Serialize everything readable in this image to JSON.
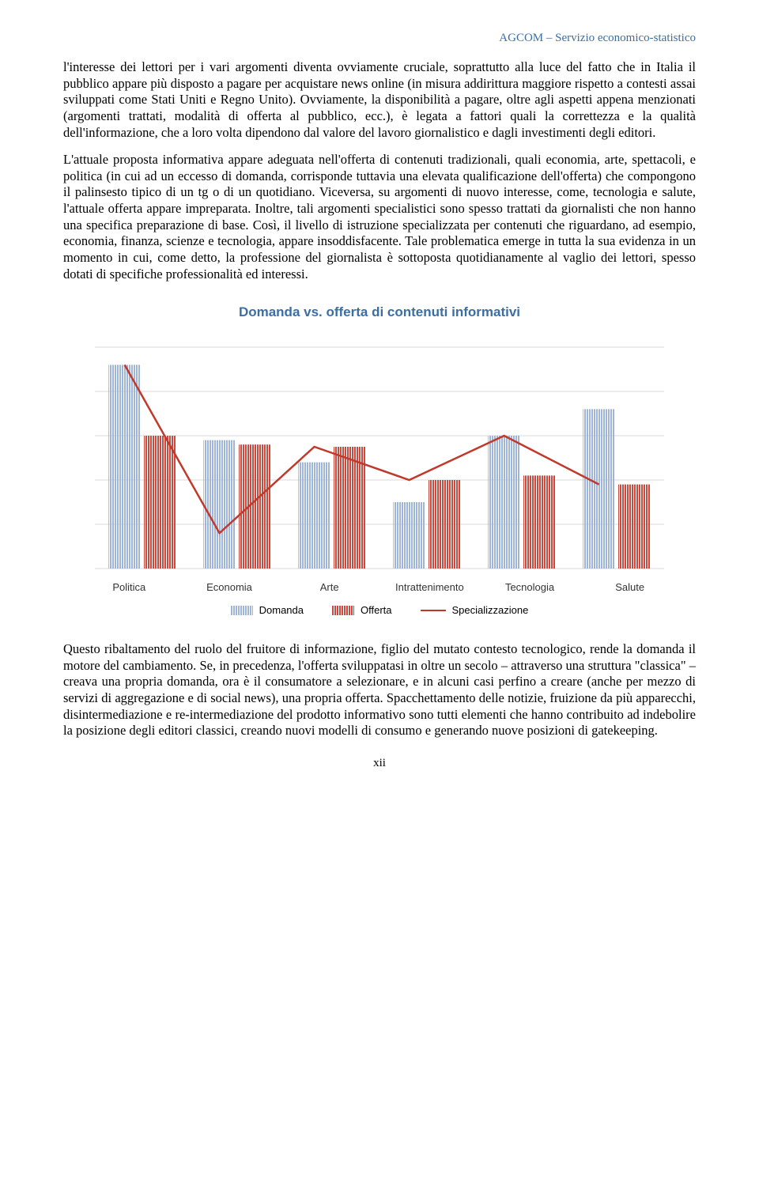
{
  "header": {
    "text": "AGCOM – Servizio economico-statistico",
    "color": "#3b6ea5"
  },
  "paragraphs": {
    "p1": "l'interesse dei lettori per i vari argomenti diventa ovviamente cruciale, soprattutto alla luce del fatto che in Italia il pubblico appare più disposto a pagare per acquistare news online (in misura addirittura maggiore rispetto a contesti assai sviluppati come Stati Uniti e Regno Unito). Ovviamente, la disponibilità a pagare, oltre agli aspetti appena menzionati (argomenti trattati, modalità di offerta al pubblico, ecc.), è legata a fattori quali la correttezza e la qualità dell'informazione, che a loro volta dipendono dal valore del lavoro giornalistico e dagli investimenti degli editori.",
    "p2": "L'attuale proposta informativa appare adeguata nell'offerta di contenuti tradizionali, quali economia, arte, spettacoli, e politica (in cui ad un eccesso di domanda, corrisponde tuttavia una elevata qualificazione dell'offerta) che compongono il palinsesto tipico di un tg o di un quotidiano. Viceversa, su argomenti di nuovo interesse, come, tecnologia e salute, l'attuale offerta appare impreparata. Inoltre, tali argomenti specialistici sono spesso trattati da giornalisti che non hanno una specifica preparazione di base. Così, il livello di istruzione specializzata per contenuti che riguardano, ad esempio, economia, finanza, scienze e tecnologia, appare insoddisfacente. Tale problematica emerge in tutta la sua evidenza in un momento in cui, come detto, la professione del giornalista è sottoposta quotidianamente al vaglio dei lettori, spesso dotati di specifiche professionalità ed interessi.",
    "p3": "Questo ribaltamento del ruolo del fruitore di informazione, figlio del mutato contesto tecnologico, rende la domanda il motore del cambiamento. Se, in precedenza, l'offerta sviluppatasi in oltre un secolo – attraverso una struttura \"classica\" – creava una propria domanda, ora è il consumatore a selezionare, e in alcuni casi perfino a creare (anche per mezzo di servizi di aggregazione e di social news), una propria offerta. Spacchettamento delle notizie, fruizione da più apparecchi, disintermediazione e re-intermediazione del prodotto informativo sono tutti elementi che hanno contribuito ad indebolire la posizione degli editori classici, creando nuovi modelli di consumo e generando nuove posizioni di gatekeeping."
  },
  "chart": {
    "title": "Domanda vs. offerta di contenuti informativi",
    "title_color": "#3b6ea5",
    "type": "bar+line",
    "categories": [
      "Politica",
      "Economia",
      "Arte",
      "Intrattenimento",
      "Tecnologia",
      "Salute"
    ],
    "domanda": [
      92,
      58,
      48,
      30,
      60,
      72
    ],
    "offerta": [
      60,
      56,
      55,
      40,
      42,
      38
    ],
    "specializzazione": [
      92,
      16,
      55,
      40,
      60,
      38
    ],
    "ylim": [
      0,
      100
    ],
    "grid_steps": 5,
    "bar_width": 0.34,
    "colors": {
      "domanda": "#9fb4d9",
      "offerta": "#c94a3e",
      "line": "#c0392b",
      "grid": "#d9d9d9",
      "bg": "#ffffff",
      "xlabel": "#333333"
    },
    "legend": {
      "domanda": "Domanda",
      "offerta": "Offerta",
      "specializzazione": "Specializzazione"
    },
    "label_fontsize": 13
  },
  "page_num": "xii"
}
